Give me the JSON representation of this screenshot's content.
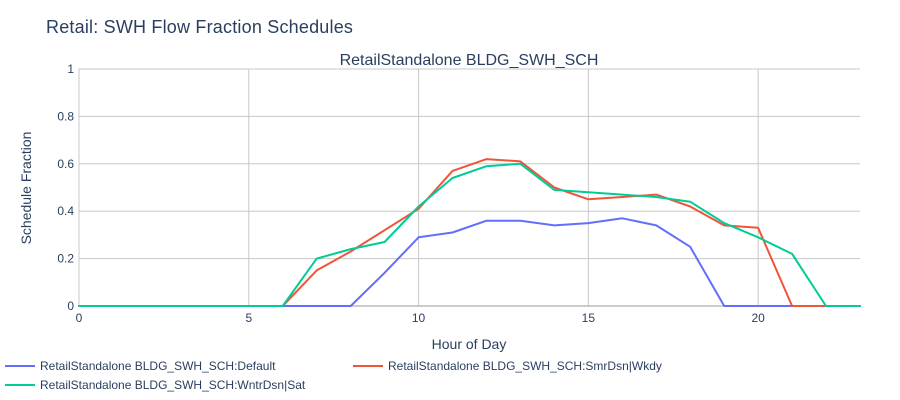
{
  "figure_title": "Retail: SWH Flow Fraction Schedules",
  "chart_data": {
    "type": "line",
    "title": "RetailStandalone BLDG_SWH_SCH",
    "xlabel": "Hour of Day",
    "ylabel": "Schedule Fraction",
    "xlim": [
      0,
      23
    ],
    "ylim": [
      0,
      1
    ],
    "x_ticks": [
      0,
      5,
      10,
      15,
      20
    ],
    "y_ticks": [
      0,
      0.2,
      0.4,
      0.6,
      0.8,
      1
    ],
    "y_tick_labels": [
      "0",
      "0.2",
      "0.4",
      "0.6",
      "0.8",
      "1"
    ],
    "x": [
      0,
      1,
      2,
      3,
      4,
      5,
      6,
      7,
      8,
      9,
      10,
      11,
      12,
      13,
      14,
      15,
      16,
      17,
      18,
      19,
      20,
      21,
      22,
      23
    ],
    "grid": true,
    "legend_position": "bottom",
    "series": [
      {
        "name": "RetailStandalone BLDG_SWH_SCH:Default",
        "color": "#636efa",
        "values": [
          0,
          0,
          0,
          0,
          0,
          0,
          0,
          0,
          0,
          0.14,
          0.29,
          0.31,
          0.36,
          0.36,
          0.34,
          0.35,
          0.37,
          0.34,
          0.25,
          0,
          0,
          0,
          0,
          0
        ]
      },
      {
        "name": "RetailStandalone BLDG_SWH_SCH:SmrDsn|Wkdy",
        "color": "#ef553b",
        "values": [
          0,
          0,
          0,
          0,
          0,
          0,
          0,
          0.15,
          0.23,
          0.32,
          0.41,
          0.57,
          0.62,
          0.61,
          0.5,
          0.45,
          0.46,
          0.47,
          0.42,
          0.34,
          0.33,
          0,
          0,
          0
        ]
      },
      {
        "name": "RetailStandalone BLDG_SWH_SCH:WntrDsn|Sat",
        "color": "#00cc96",
        "values": [
          0,
          0,
          0,
          0,
          0,
          0,
          0,
          0.2,
          0.24,
          0.27,
          0.42,
          0.54,
          0.59,
          0.6,
          0.49,
          0.48,
          0.47,
          0.46,
          0.44,
          0.35,
          0.29,
          0.22,
          0,
          0
        ]
      }
    ]
  }
}
